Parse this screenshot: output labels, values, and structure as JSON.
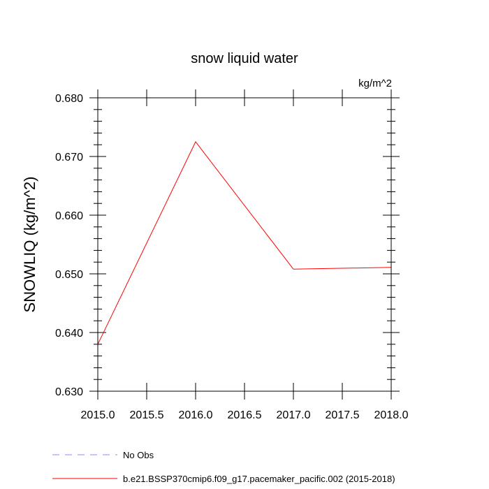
{
  "chart_data": {
    "type": "line",
    "title": "snow liquid water",
    "units": "kg/m^2",
    "ylabel": "SNOWLIQ  (kg/m^2)",
    "xlabel": "",
    "xlim": [
      2015.0,
      2018.0
    ],
    "ylim": [
      0.63,
      0.68
    ],
    "x_ticks": [
      2015.0,
      2015.5,
      2016.0,
      2016.5,
      2017.0,
      2017.5,
      2018.0
    ],
    "x_tick_labels": [
      "2015.0",
      "2015.5",
      "2016.0",
      "2016.5",
      "2017.0",
      "2017.5",
      "2018.0"
    ],
    "y_ticks": [
      0.63,
      0.64,
      0.65,
      0.66,
      0.67,
      0.68
    ],
    "y_tick_labels": [
      "0.630",
      "0.640",
      "0.650",
      "0.660",
      "0.670",
      "0.680"
    ],
    "grid": false,
    "legend_position": "bottom-left",
    "series": [
      {
        "name": "b.e21.BSSP370cmip6.f09_g17.pacemaker_pacific.002 (2015-2018)",
        "color": "#ff0000",
        "style": "solid",
        "x": [
          2015.0,
          2016.0,
          2017.0,
          2018.0
        ],
        "values": [
          0.638,
          0.6725,
          0.6508,
          0.6511
        ]
      }
    ],
    "legend": [
      {
        "label": "No Obs",
        "color": "#8c8cff",
        "style": "dashed"
      },
      {
        "label": "b.e21.BSSP370cmip6.f09_g17.pacemaker_pacific.002 (2015-2018)",
        "color": "#ff0000",
        "style": "solid"
      }
    ]
  }
}
